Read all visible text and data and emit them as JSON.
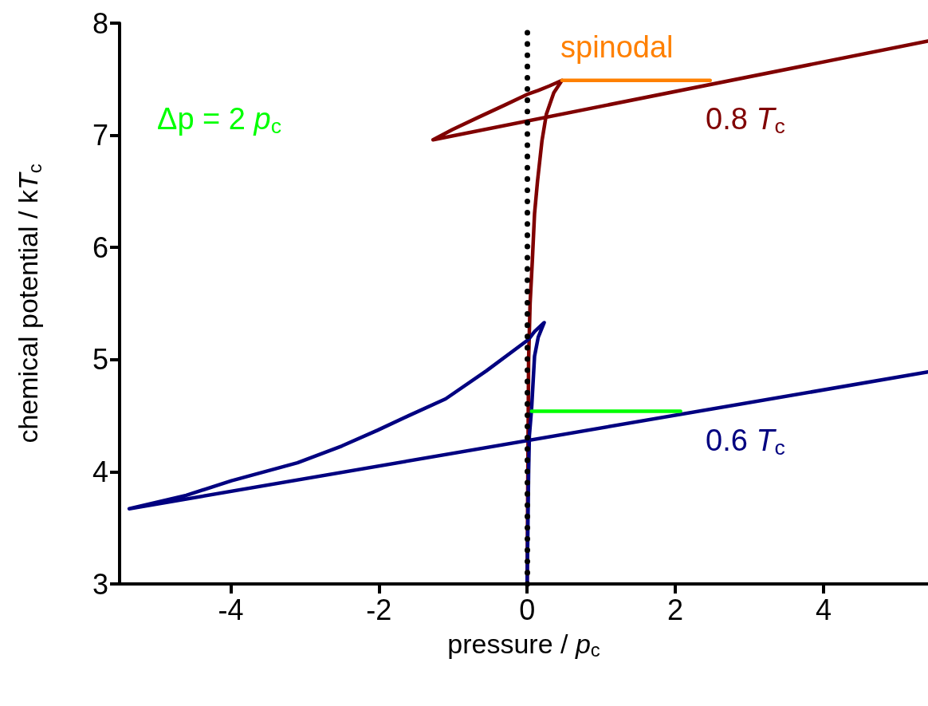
{
  "chart_data": {
    "type": "line",
    "xlabel": "pressure / p$_{c}$",
    "ylabel": "chemical potential / kT$_{c}$",
    "xlim": [
      -5.5,
      5.41
    ],
    "xticks": [
      -4,
      -2,
      0,
      2,
      4
    ],
    "ylim": [
      3,
      8
    ],
    "yticks": [
      3,
      4,
      5,
      6,
      7,
      8
    ],
    "grid": false,
    "legend": false,
    "marker": "none",
    "line_style": "solid",
    "ref_lines": [
      {
        "axis": "x",
        "value": 0,
        "label": null,
        "color": "#000000",
        "line_style": "dotted"
      }
    ],
    "series": [
      {
        "name": "0.8 T$_{c}$",
        "color": "#800000",
        "x": [
          0,
          0.01,
          0.02,
          0.04,
          0.07,
          0.1,
          0.14,
          0.2,
          0.26,
          0.36,
          0.47,
          0.3,
          0.15,
          0.02,
          -0.3,
          -0.66,
          -1.01,
          -1.27,
          5.41
        ],
        "values": [
          3,
          4,
          5,
          5.5,
          5.88,
          6.3,
          6.59,
          6.95,
          7.19,
          7.38,
          7.49,
          7.44,
          7.4,
          7.37,
          7.27,
          7.16,
          7.05,
          6.96,
          7.84
        ]
      },
      {
        "name": "spinodal",
        "color": "#ff8000",
        "x": [
          0.47,
          2.47
        ],
        "values": [
          7.49,
          7.49
        ]
      },
      {
        "name": "0.6 T$_{c}$",
        "color": "#000080",
        "x": [
          0,
          0.01,
          0.02,
          0.03,
          0.06,
          0.1,
          0.15,
          0.23,
          0.1,
          0.02,
          -0.55,
          -1.1,
          -1.6,
          -2.02,
          -2.5,
          -3.1,
          -3.99,
          -4.6,
          -5.37,
          5.41
        ],
        "values": [
          3,
          3.5,
          4,
          4.32,
          4.56,
          5.03,
          5.2,
          5.33,
          5.25,
          5.18,
          4.9,
          4.65,
          4.5,
          4.37,
          4.23,
          4.08,
          3.92,
          3.79,
          3.67,
          4.89
        ]
      },
      {
        "name": "Δp = 2 p$_{c}$",
        "color": "#00ff00",
        "x": [
          0.06,
          2.07
        ],
        "values": [
          4.54,
          4.54
        ]
      }
    ]
  }
}
